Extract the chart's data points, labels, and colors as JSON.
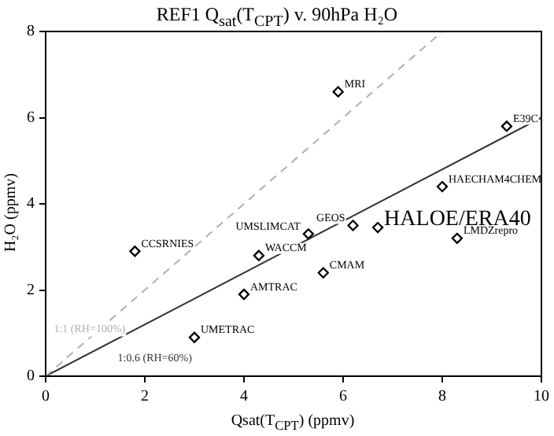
{
  "chart_data": {
    "type": "scatter",
    "title": "REF1 Q$_{sat}$(T$_{CPT}$) v. 90hPa H₂O",
    "xlabel": "Qsat(T$_{CPT}$) (ppmv)",
    "ylabel": "H₂O (ppmv)",
    "xlim": [
      0,
      10
    ],
    "ylim": [
      0,
      8
    ],
    "xticks": [
      0,
      2,
      4,
      6,
      8,
      10
    ],
    "yticks": [
      0,
      2,
      4,
      6,
      8
    ],
    "grid": false,
    "legend": false,
    "series": [
      {
        "type": "line",
        "name": "1:1 (RH=100%)",
        "color": "#b0b0b0",
        "x": [
          0,
          8
        ],
        "values": [
          0,
          8
        ],
        "line_style": "dashed",
        "marker": "none"
      },
      {
        "type": "line",
        "name": "1:0.6 (RH=60%)",
        "color": "#333333",
        "x": [
          0,
          10
        ],
        "values": [
          0,
          6
        ],
        "line_style": "solid",
        "marker": "none"
      },
      {
        "color": "#000000",
        "marker": "diamond",
        "x": [
          5.9,
          9.3,
          8.0,
          5.3,
          6.2,
          8.3,
          1.8,
          4.3,
          5.6,
          4.0,
          3.0
        ],
        "values": [
          6.6,
          5.8,
          4.4,
          3.3,
          3.5,
          3.2,
          2.9,
          2.8,
          2.4,
          1.9,
          0.9
        ],
        "value_labels": [
          "MRI",
          "E39C",
          "HAECHAM4CHEM",
          "UMSLIMCAT",
          "GEOS",
          "LMDZrepro",
          "CCSRNIES",
          "WACCM",
          "CMAM",
          "AMTRAC",
          "UMETRAC"
        ]
      },
      {
        "name": "HALOE/ERA40",
        "color": "#000000",
        "marker": "diamond",
        "x": [
          6.7
        ],
        "values": [
          3.45
        ]
      }
    ]
  }
}
